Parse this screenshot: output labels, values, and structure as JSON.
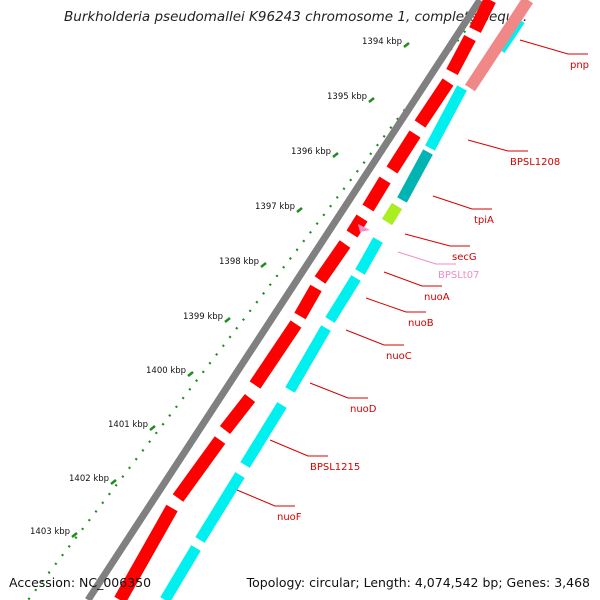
{
  "title": "Burkholderia pseudomallei K96243 chromosome 1, complete sequ...",
  "footer": {
    "accession": "Accession: NC_006350",
    "topology": "Topology: circular; Length: 4,074,542 bp; Genes: 3,468"
  },
  "colors": {
    "backbone": "#808080",
    "forward_cds": "#ff0000",
    "reverse_cds": "#00f0f0",
    "reverse_cds_dark": "#00b4b4",
    "label_line": "#d40000",
    "trna": "#f08cc8",
    "secg": "#aaee22",
    "ruler": "#1e8c1e"
  },
  "ruler_ticks": [
    {
      "label": "1394 kbp"
    },
    {
      "label": "1395 kbp"
    },
    {
      "label": "1396 kbp"
    },
    {
      "label": "1397 kbp"
    },
    {
      "label": "1398 kbp"
    },
    {
      "label": "1399 kbp"
    },
    {
      "label": "1400 kbp"
    },
    {
      "label": "1401 kbp"
    },
    {
      "label": "1402 kbp"
    },
    {
      "label": "1403 kbp"
    }
  ],
  "genes": [
    {
      "name": "pnp",
      "color": "#d40000"
    },
    {
      "name": "BPSL1208",
      "color": "#d40000"
    },
    {
      "name": "tpiA",
      "color": "#d40000"
    },
    {
      "name": "secG",
      "color": "#d40000"
    },
    {
      "name": "BPSLt07",
      "color": "#f08cc8"
    },
    {
      "name": "nuoA",
      "color": "#d40000"
    },
    {
      "name": "nuoB",
      "color": "#d40000"
    },
    {
      "name": "nuoC",
      "color": "#d40000"
    },
    {
      "name": "nuoD",
      "color": "#d40000"
    },
    {
      "name": "BPSL1215",
      "color": "#d40000"
    },
    {
      "name": "nuoF",
      "color": "#d40000"
    }
  ]
}
